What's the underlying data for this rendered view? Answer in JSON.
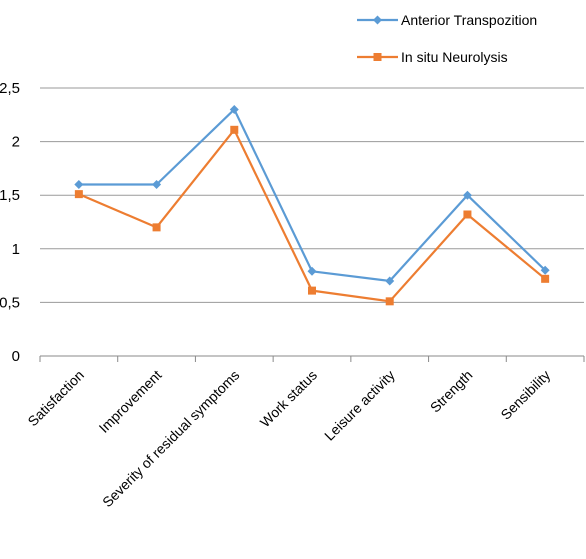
{
  "chart_data": {
    "type": "line",
    "title": "",
    "xlabel": "",
    "ylabel": "",
    "categories": [
      "Satisfaction",
      "Improvement",
      "Severity of residual symptoms",
      "Work status",
      "Leisure activity",
      "Strength",
      "Sensibility"
    ],
    "y_ticks": [
      "0",
      "0,5",
      "1",
      "1,5",
      "2",
      "2,5"
    ],
    "ylim": [
      0,
      2.5
    ],
    "grid": true,
    "legend_position": "top-right",
    "series": [
      {
        "name": "Anterior Transpozition",
        "color": "#5b9bd5",
        "marker": "diamond",
        "values": [
          1.6,
          1.6,
          2.3,
          0.79,
          0.7,
          1.5,
          0.8
        ]
      },
      {
        "name": "In situ Neurolysis",
        "color": "#ed7d31",
        "marker": "square",
        "values": [
          1.51,
          1.2,
          2.11,
          0.61,
          0.51,
          1.32,
          0.72
        ]
      }
    ]
  }
}
